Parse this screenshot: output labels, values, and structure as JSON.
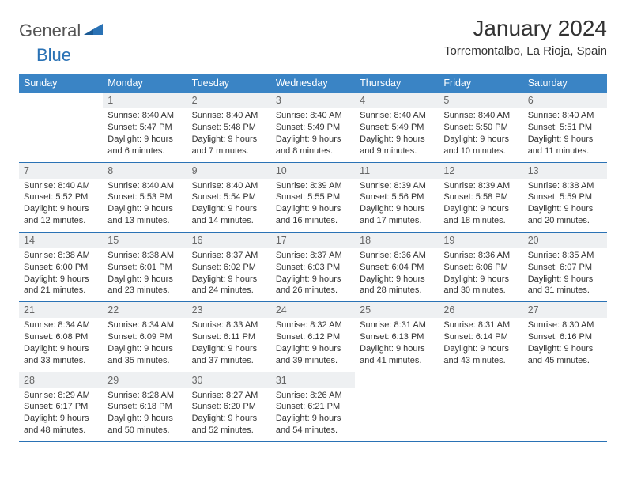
{
  "brand": {
    "part1": "General",
    "part2": "Blue"
  },
  "title": "January 2024",
  "location": "Torremontalbo, La Rioja, Spain",
  "colors": {
    "header_bg": "#3a84c5",
    "border": "#2a72b5",
    "daynum_bg": "#eef0f2",
    "text": "#333333",
    "white": "#ffffff"
  },
  "day_headers": [
    "Sunday",
    "Monday",
    "Tuesday",
    "Wednesday",
    "Thursday",
    "Friday",
    "Saturday"
  ],
  "weeks": [
    [
      {
        "n": "",
        "sr": "",
        "ss": "",
        "dl": ""
      },
      {
        "n": "1",
        "sr": "Sunrise: 8:40 AM",
        "ss": "Sunset: 5:47 PM",
        "dl": "Daylight: 9 hours and 6 minutes."
      },
      {
        "n": "2",
        "sr": "Sunrise: 8:40 AM",
        "ss": "Sunset: 5:48 PM",
        "dl": "Daylight: 9 hours and 7 minutes."
      },
      {
        "n": "3",
        "sr": "Sunrise: 8:40 AM",
        "ss": "Sunset: 5:49 PM",
        "dl": "Daylight: 9 hours and 8 minutes."
      },
      {
        "n": "4",
        "sr": "Sunrise: 8:40 AM",
        "ss": "Sunset: 5:49 PM",
        "dl": "Daylight: 9 hours and 9 minutes."
      },
      {
        "n": "5",
        "sr": "Sunrise: 8:40 AM",
        "ss": "Sunset: 5:50 PM",
        "dl": "Daylight: 9 hours and 10 minutes."
      },
      {
        "n": "6",
        "sr": "Sunrise: 8:40 AM",
        "ss": "Sunset: 5:51 PM",
        "dl": "Daylight: 9 hours and 11 minutes."
      }
    ],
    [
      {
        "n": "7",
        "sr": "Sunrise: 8:40 AM",
        "ss": "Sunset: 5:52 PM",
        "dl": "Daylight: 9 hours and 12 minutes."
      },
      {
        "n": "8",
        "sr": "Sunrise: 8:40 AM",
        "ss": "Sunset: 5:53 PM",
        "dl": "Daylight: 9 hours and 13 minutes."
      },
      {
        "n": "9",
        "sr": "Sunrise: 8:40 AM",
        "ss": "Sunset: 5:54 PM",
        "dl": "Daylight: 9 hours and 14 minutes."
      },
      {
        "n": "10",
        "sr": "Sunrise: 8:39 AM",
        "ss": "Sunset: 5:55 PM",
        "dl": "Daylight: 9 hours and 16 minutes."
      },
      {
        "n": "11",
        "sr": "Sunrise: 8:39 AM",
        "ss": "Sunset: 5:56 PM",
        "dl": "Daylight: 9 hours and 17 minutes."
      },
      {
        "n": "12",
        "sr": "Sunrise: 8:39 AM",
        "ss": "Sunset: 5:58 PM",
        "dl": "Daylight: 9 hours and 18 minutes."
      },
      {
        "n": "13",
        "sr": "Sunrise: 8:38 AM",
        "ss": "Sunset: 5:59 PM",
        "dl": "Daylight: 9 hours and 20 minutes."
      }
    ],
    [
      {
        "n": "14",
        "sr": "Sunrise: 8:38 AM",
        "ss": "Sunset: 6:00 PM",
        "dl": "Daylight: 9 hours and 21 minutes."
      },
      {
        "n": "15",
        "sr": "Sunrise: 8:38 AM",
        "ss": "Sunset: 6:01 PM",
        "dl": "Daylight: 9 hours and 23 minutes."
      },
      {
        "n": "16",
        "sr": "Sunrise: 8:37 AM",
        "ss": "Sunset: 6:02 PM",
        "dl": "Daylight: 9 hours and 24 minutes."
      },
      {
        "n": "17",
        "sr": "Sunrise: 8:37 AM",
        "ss": "Sunset: 6:03 PM",
        "dl": "Daylight: 9 hours and 26 minutes."
      },
      {
        "n": "18",
        "sr": "Sunrise: 8:36 AM",
        "ss": "Sunset: 6:04 PM",
        "dl": "Daylight: 9 hours and 28 minutes."
      },
      {
        "n": "19",
        "sr": "Sunrise: 8:36 AM",
        "ss": "Sunset: 6:06 PM",
        "dl": "Daylight: 9 hours and 30 minutes."
      },
      {
        "n": "20",
        "sr": "Sunrise: 8:35 AM",
        "ss": "Sunset: 6:07 PM",
        "dl": "Daylight: 9 hours and 31 minutes."
      }
    ],
    [
      {
        "n": "21",
        "sr": "Sunrise: 8:34 AM",
        "ss": "Sunset: 6:08 PM",
        "dl": "Daylight: 9 hours and 33 minutes."
      },
      {
        "n": "22",
        "sr": "Sunrise: 8:34 AM",
        "ss": "Sunset: 6:09 PM",
        "dl": "Daylight: 9 hours and 35 minutes."
      },
      {
        "n": "23",
        "sr": "Sunrise: 8:33 AM",
        "ss": "Sunset: 6:11 PM",
        "dl": "Daylight: 9 hours and 37 minutes."
      },
      {
        "n": "24",
        "sr": "Sunrise: 8:32 AM",
        "ss": "Sunset: 6:12 PM",
        "dl": "Daylight: 9 hours and 39 minutes."
      },
      {
        "n": "25",
        "sr": "Sunrise: 8:31 AM",
        "ss": "Sunset: 6:13 PM",
        "dl": "Daylight: 9 hours and 41 minutes."
      },
      {
        "n": "26",
        "sr": "Sunrise: 8:31 AM",
        "ss": "Sunset: 6:14 PM",
        "dl": "Daylight: 9 hours and 43 minutes."
      },
      {
        "n": "27",
        "sr": "Sunrise: 8:30 AM",
        "ss": "Sunset: 6:16 PM",
        "dl": "Daylight: 9 hours and 45 minutes."
      }
    ],
    [
      {
        "n": "28",
        "sr": "Sunrise: 8:29 AM",
        "ss": "Sunset: 6:17 PM",
        "dl": "Daylight: 9 hours and 48 minutes."
      },
      {
        "n": "29",
        "sr": "Sunrise: 8:28 AM",
        "ss": "Sunset: 6:18 PM",
        "dl": "Daylight: 9 hours and 50 minutes."
      },
      {
        "n": "30",
        "sr": "Sunrise: 8:27 AM",
        "ss": "Sunset: 6:20 PM",
        "dl": "Daylight: 9 hours and 52 minutes."
      },
      {
        "n": "31",
        "sr": "Sunrise: 8:26 AM",
        "ss": "Sunset: 6:21 PM",
        "dl": "Daylight: 9 hours and 54 minutes."
      },
      {
        "n": "",
        "sr": "",
        "ss": "",
        "dl": ""
      },
      {
        "n": "",
        "sr": "",
        "ss": "",
        "dl": ""
      },
      {
        "n": "",
        "sr": "",
        "ss": "",
        "dl": ""
      }
    ]
  ]
}
